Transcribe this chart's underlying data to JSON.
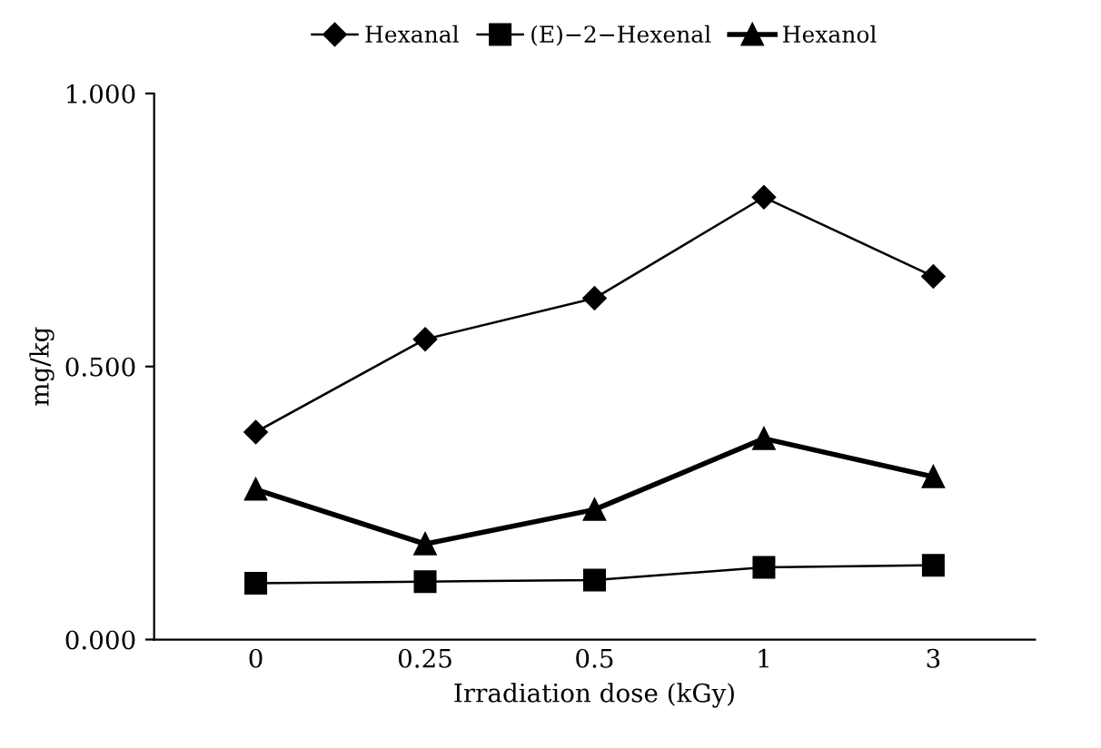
{
  "chart_data": {
    "type": "line",
    "xlabel": "Irradiation dose (kGy)",
    "ylabel": "mg/kg",
    "categories": [
      "0",
      "0.25",
      "0.5",
      "1",
      "3"
    ],
    "series": [
      {
        "name": "Hexanal",
        "color": "#000000",
        "marker": "diamond",
        "values": [
          0.38,
          0.55,
          0.625,
          0.81,
          0.665
        ]
      },
      {
        "name": "(E)−2−Hexenal",
        "color": "#000000",
        "marker": "square",
        "values": [
          0.103,
          0.106,
          0.109,
          0.132,
          0.136
        ]
      },
      {
        "name": "Hexanol",
        "color": "#000000",
        "marker": "triangle",
        "values": [
          0.275,
          0.175,
          0.238,
          0.368,
          0.298
        ]
      }
    ],
    "ylim": [
      0,
      1
    ],
    "yticks": [
      {
        "value": 0,
        "label": "0.000"
      },
      {
        "value": 0.5,
        "label": "0.500"
      },
      {
        "value": 1,
        "label": "1.000"
      }
    ],
    "grid": false,
    "legend": "top",
    "line_style": "solid"
  }
}
